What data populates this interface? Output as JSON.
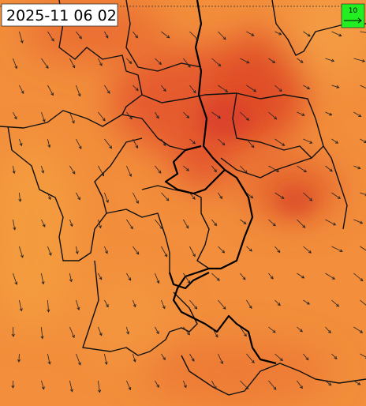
{
  "header": {
    "timestamp": "2025-11 06 02"
  },
  "legend": {
    "label": "10"
  }
}
